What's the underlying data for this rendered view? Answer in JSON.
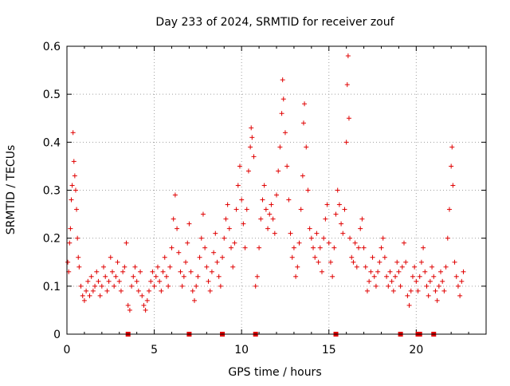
{
  "chart_data": {
    "type": "scatter",
    "title": "Day 233 of 2024, SRMTID for receiver zouf",
    "xlabel": "GPS time / hours",
    "ylabel": "SRMTID / TECUs",
    "xlim": [
      0,
      24
    ],
    "ylim": [
      0,
      0.6
    ],
    "x_ticks": [
      0,
      5,
      10,
      15,
      20
    ],
    "y_ticks": [
      0,
      0.1,
      0.2,
      0.3,
      0.4,
      0.5,
      0.6
    ],
    "x_tick_labels": [
      "0",
      "5",
      "10",
      "15",
      "20"
    ],
    "y_tick_labels": [
      "0",
      "0.1",
      "0.2",
      "0.3",
      "0.4",
      "0.5",
      "0.6"
    ],
    "grid": true,
    "marker": "+",
    "series_color": "#e00000",
    "series": [
      {
        "name": "SRMTID",
        "points": [
          [
            0.05,
            0.15
          ],
          [
            0.1,
            0.13
          ],
          [
            0.15,
            0.19
          ],
          [
            0.2,
            0.22
          ],
          [
            0.25,
            0.28
          ],
          [
            0.3,
            0.31
          ],
          [
            0.35,
            0.42
          ],
          [
            0.4,
            0.36
          ],
          [
            0.45,
            0.33
          ],
          [
            0.5,
            0.3
          ],
          [
            0.55,
            0.26
          ],
          [
            0.6,
            0.2
          ],
          [
            0.65,
            0.16
          ],
          [
            0.7,
            0.14
          ],
          [
            0.8,
            0.1
          ],
          [
            0.9,
            0.08
          ],
          [
            1.0,
            0.07
          ],
          [
            1.1,
            0.09
          ],
          [
            1.2,
            0.11
          ],
          [
            1.3,
            0.08
          ],
          [
            1.4,
            0.12
          ],
          [
            1.5,
            0.09
          ],
          [
            1.6,
            0.1
          ],
          [
            1.7,
            0.13
          ],
          [
            1.8,
            0.11
          ],
          [
            1.9,
            0.08
          ],
          [
            2.0,
            0.1
          ],
          [
            2.1,
            0.14
          ],
          [
            2.2,
            0.12
          ],
          [
            2.3,
            0.09
          ],
          [
            2.4,
            0.11
          ],
          [
            2.5,
            0.16
          ],
          [
            2.6,
            0.13
          ],
          [
            2.7,
            0.1
          ],
          [
            2.8,
            0.12
          ],
          [
            2.9,
            0.15
          ],
          [
            3.0,
            0.11
          ],
          [
            3.1,
            0.09
          ],
          [
            3.2,
            0.13
          ],
          [
            3.3,
            0.14
          ],
          [
            3.4,
            0.19
          ],
          [
            3.5,
            0.06
          ],
          [
            3.6,
            0.05
          ],
          [
            3.7,
            0.1
          ],
          [
            3.8,
            0.12
          ],
          [
            3.9,
            0.14
          ],
          [
            4.0,
            0.11
          ],
          [
            4.1,
            0.09
          ],
          [
            4.2,
            0.13
          ],
          [
            4.3,
            0.08
          ],
          [
            4.4,
            0.06
          ],
          [
            4.5,
            0.05
          ],
          [
            4.6,
            0.07
          ],
          [
            4.7,
            0.09
          ],
          [
            4.8,
            0.11
          ],
          [
            4.9,
            0.13
          ],
          [
            5.0,
            0.1
          ],
          [
            5.1,
            0.12
          ],
          [
            5.2,
            0.14
          ],
          [
            5.3,
            0.11
          ],
          [
            5.4,
            0.09
          ],
          [
            5.5,
            0.13
          ],
          [
            5.6,
            0.16
          ],
          [
            5.7,
            0.12
          ],
          [
            5.8,
            0.1
          ],
          [
            5.9,
            0.14
          ],
          [
            6.0,
            0.18
          ],
          [
            6.1,
            0.24
          ],
          [
            6.2,
            0.29
          ],
          [
            6.3,
            0.22
          ],
          [
            6.4,
            0.17
          ],
          [
            6.5,
            0.13
          ],
          [
            6.6,
            0.1
          ],
          [
            6.7,
            0.12
          ],
          [
            6.8,
            0.15
          ],
          [
            6.9,
            0.19
          ],
          [
            7.0,
            0.23
          ],
          [
            7.1,
            0.13
          ],
          [
            7.2,
            0.09
          ],
          [
            7.3,
            0.07
          ],
          [
            7.4,
            0.1
          ],
          [
            7.5,
            0.12
          ],
          [
            7.6,
            0.16
          ],
          [
            7.7,
            0.2
          ],
          [
            7.8,
            0.25
          ],
          [
            7.9,
            0.18
          ],
          [
            8.0,
            0.14
          ],
          [
            8.1,
            0.11
          ],
          [
            8.2,
            0.09
          ],
          [
            8.3,
            0.13
          ],
          [
            8.4,
            0.17
          ],
          [
            8.5,
            0.21
          ],
          [
            8.6,
            0.15
          ],
          [
            8.7,
            0.12
          ],
          [
            8.8,
            0.1
          ],
          [
            8.9,
            0.16
          ],
          [
            9.0,
            0.2
          ],
          [
            9.1,
            0.24
          ],
          [
            9.2,
            0.27
          ],
          [
            9.3,
            0.22
          ],
          [
            9.4,
            0.18
          ],
          [
            9.5,
            0.14
          ],
          [
            9.6,
            0.19
          ],
          [
            9.7,
            0.26
          ],
          [
            9.8,
            0.31
          ],
          [
            9.9,
            0.35
          ],
          [
            10.0,
            0.28
          ],
          [
            10.1,
            0.23
          ],
          [
            10.2,
            0.18
          ],
          [
            10.3,
            0.26
          ],
          [
            10.4,
            0.34
          ],
          [
            10.5,
            0.39
          ],
          [
            10.55,
            0.43
          ],
          [
            10.6,
            0.41
          ],
          [
            10.7,
            0.37
          ],
          [
            10.8,
            0.1
          ],
          [
            10.9,
            0.12
          ],
          [
            11.0,
            0.18
          ],
          [
            11.1,
            0.24
          ],
          [
            11.2,
            0.28
          ],
          [
            11.3,
            0.31
          ],
          [
            11.4,
            0.26
          ],
          [
            11.5,
            0.22
          ],
          [
            11.6,
            0.25
          ],
          [
            11.7,
            0.27
          ],
          [
            11.8,
            0.24
          ],
          [
            11.9,
            0.21
          ],
          [
            12.0,
            0.29
          ],
          [
            12.1,
            0.34
          ],
          [
            12.2,
            0.39
          ],
          [
            12.3,
            0.46
          ],
          [
            12.35,
            0.53
          ],
          [
            12.4,
            0.49
          ],
          [
            12.5,
            0.42
          ],
          [
            12.6,
            0.35
          ],
          [
            12.7,
            0.28
          ],
          [
            12.8,
            0.21
          ],
          [
            12.9,
            0.16
          ],
          [
            13.0,
            0.18
          ],
          [
            13.1,
            0.12
          ],
          [
            13.2,
            0.14
          ],
          [
            13.3,
            0.19
          ],
          [
            13.4,
            0.26
          ],
          [
            13.5,
            0.33
          ],
          [
            13.55,
            0.44
          ],
          [
            13.6,
            0.48
          ],
          [
            13.7,
            0.39
          ],
          [
            13.8,
            0.3
          ],
          [
            13.9,
            0.22
          ],
          [
            14.0,
            0.2
          ],
          [
            14.1,
            0.18
          ],
          [
            14.2,
            0.16
          ],
          [
            14.3,
            0.21
          ],
          [
            14.4,
            0.15
          ],
          [
            14.5,
            0.18
          ],
          [
            14.6,
            0.13
          ],
          [
            14.7,
            0.2
          ],
          [
            14.8,
            0.24
          ],
          [
            14.9,
            0.27
          ],
          [
            15.0,
            0.19
          ],
          [
            15.1,
            0.15
          ],
          [
            15.2,
            0.12
          ],
          [
            15.3,
            0.18
          ],
          [
            15.4,
            0.25
          ],
          [
            15.5,
            0.3
          ],
          [
            15.6,
            0.27
          ],
          [
            15.7,
            0.23
          ],
          [
            15.8,
            0.21
          ],
          [
            15.9,
            0.26
          ],
          [
            16.0,
            0.4
          ],
          [
            16.05,
            0.52
          ],
          [
            16.1,
            0.58
          ],
          [
            16.15,
            0.45
          ],
          [
            16.2,
            0.2
          ],
          [
            16.3,
            0.16
          ],
          [
            16.4,
            0.15
          ],
          [
            16.5,
            0.19
          ],
          [
            16.6,
            0.14
          ],
          [
            16.7,
            0.18
          ],
          [
            16.8,
            0.22
          ],
          [
            16.9,
            0.24
          ],
          [
            17.0,
            0.18
          ],
          [
            17.1,
            0.14
          ],
          [
            17.2,
            0.09
          ],
          [
            17.3,
            0.11
          ],
          [
            17.4,
            0.13
          ],
          [
            17.5,
            0.16
          ],
          [
            17.6,
            0.12
          ],
          [
            17.7,
            0.1
          ],
          [
            17.8,
            0.13
          ],
          [
            17.9,
            0.15
          ],
          [
            18.0,
            0.18
          ],
          [
            18.1,
            0.2
          ],
          [
            18.2,
            0.16
          ],
          [
            18.3,
            0.12
          ],
          [
            18.4,
            0.1
          ],
          [
            18.5,
            0.13
          ],
          [
            18.6,
            0.11
          ],
          [
            18.7,
            0.09
          ],
          [
            18.8,
            0.12
          ],
          [
            18.9,
            0.15
          ],
          [
            19.0,
            0.13
          ],
          [
            19.1,
            0.1
          ],
          [
            19.2,
            0.14
          ],
          [
            19.3,
            0.19
          ],
          [
            19.4,
            0.15
          ],
          [
            19.5,
            0.08
          ],
          [
            19.6,
            0.06
          ],
          [
            19.7,
            0.09
          ],
          [
            19.8,
            0.12
          ],
          [
            19.9,
            0.14
          ],
          [
            20.0,
            0.11
          ],
          [
            20.1,
            0.09
          ],
          [
            20.2,
            0.12
          ],
          [
            20.3,
            0.15
          ],
          [
            20.4,
            0.18
          ],
          [
            20.5,
            0.13
          ],
          [
            20.6,
            0.1
          ],
          [
            20.7,
            0.08
          ],
          [
            20.8,
            0.11
          ],
          [
            20.9,
            0.14
          ],
          [
            21.0,
            0.12
          ],
          [
            21.1,
            0.09
          ],
          [
            21.2,
            0.07
          ],
          [
            21.3,
            0.1
          ],
          [
            21.4,
            0.13
          ],
          [
            21.5,
            0.11
          ],
          [
            21.6,
            0.09
          ],
          [
            21.7,
            0.14
          ],
          [
            21.8,
            0.2
          ],
          [
            21.9,
            0.26
          ],
          [
            22.0,
            0.35
          ],
          [
            22.05,
            0.39
          ],
          [
            22.1,
            0.31
          ],
          [
            22.2,
            0.15
          ],
          [
            22.3,
            0.12
          ],
          [
            22.4,
            0.1
          ],
          [
            22.5,
            0.08
          ],
          [
            22.6,
            0.11
          ],
          [
            22.7,
            0.13
          ]
        ]
      }
    ],
    "zero_markers_x": [
      3.5,
      7.0,
      8.9,
      10.8,
      15.4,
      19.1,
      20.1,
      20.2,
      21.0
    ]
  }
}
